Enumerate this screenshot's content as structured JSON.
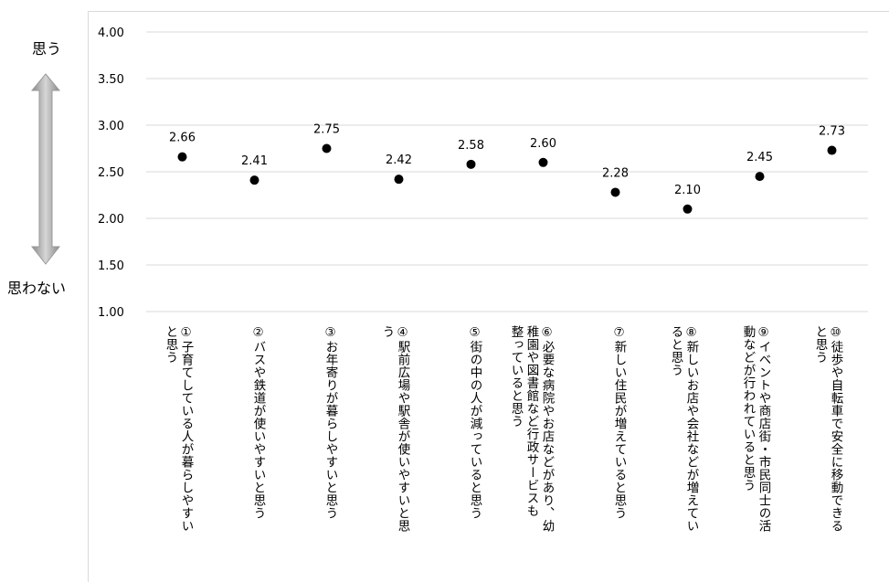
{
  "scale": {
    "high_label": "思う",
    "low_label": "思わない"
  },
  "chart_data": {
    "type": "scatter",
    "ylim": [
      1.0,
      4.0
    ],
    "yticks": [
      "1.00",
      "1.50",
      "2.00",
      "2.50",
      "3.00",
      "3.50",
      "4.00"
    ],
    "grid": true,
    "categories": [
      [
        "①子育てしている人が暮らしやすい",
        "と思う"
      ],
      [
        "②バスや鉄道が使いやすいと思う"
      ],
      [
        "③お年寄りが暮らしやすいと思う"
      ],
      [
        "④駅前広場や駅舎が使いやすいと思",
        "う"
      ],
      [
        "⑤街の中の人が減っていると思う"
      ],
      [
        "⑥必要な病院やお店などがあり、幼",
        "稚園や図書館など行政サービスも",
        "整っていると思う"
      ],
      [
        "⑦新しい住民が増えていると思う"
      ],
      [
        "⑧新しいお店や会社などが増えてい",
        "ると思う"
      ],
      [
        "⑨イベントや商店街・市民同士の活",
        "動などが行われていると思う"
      ],
      [
        "⑩徒歩や自転車で安全に移動できる",
        "と思う"
      ]
    ],
    "values": [
      2.66,
      2.41,
      2.75,
      2.42,
      2.58,
      2.6,
      2.28,
      2.1,
      2.45,
      2.73
    ],
    "value_labels": [
      "2.66",
      "2.41",
      "2.75",
      "2.42",
      "2.58",
      "2.60",
      "2.28",
      "2.10",
      "2.45",
      "2.73"
    ]
  }
}
